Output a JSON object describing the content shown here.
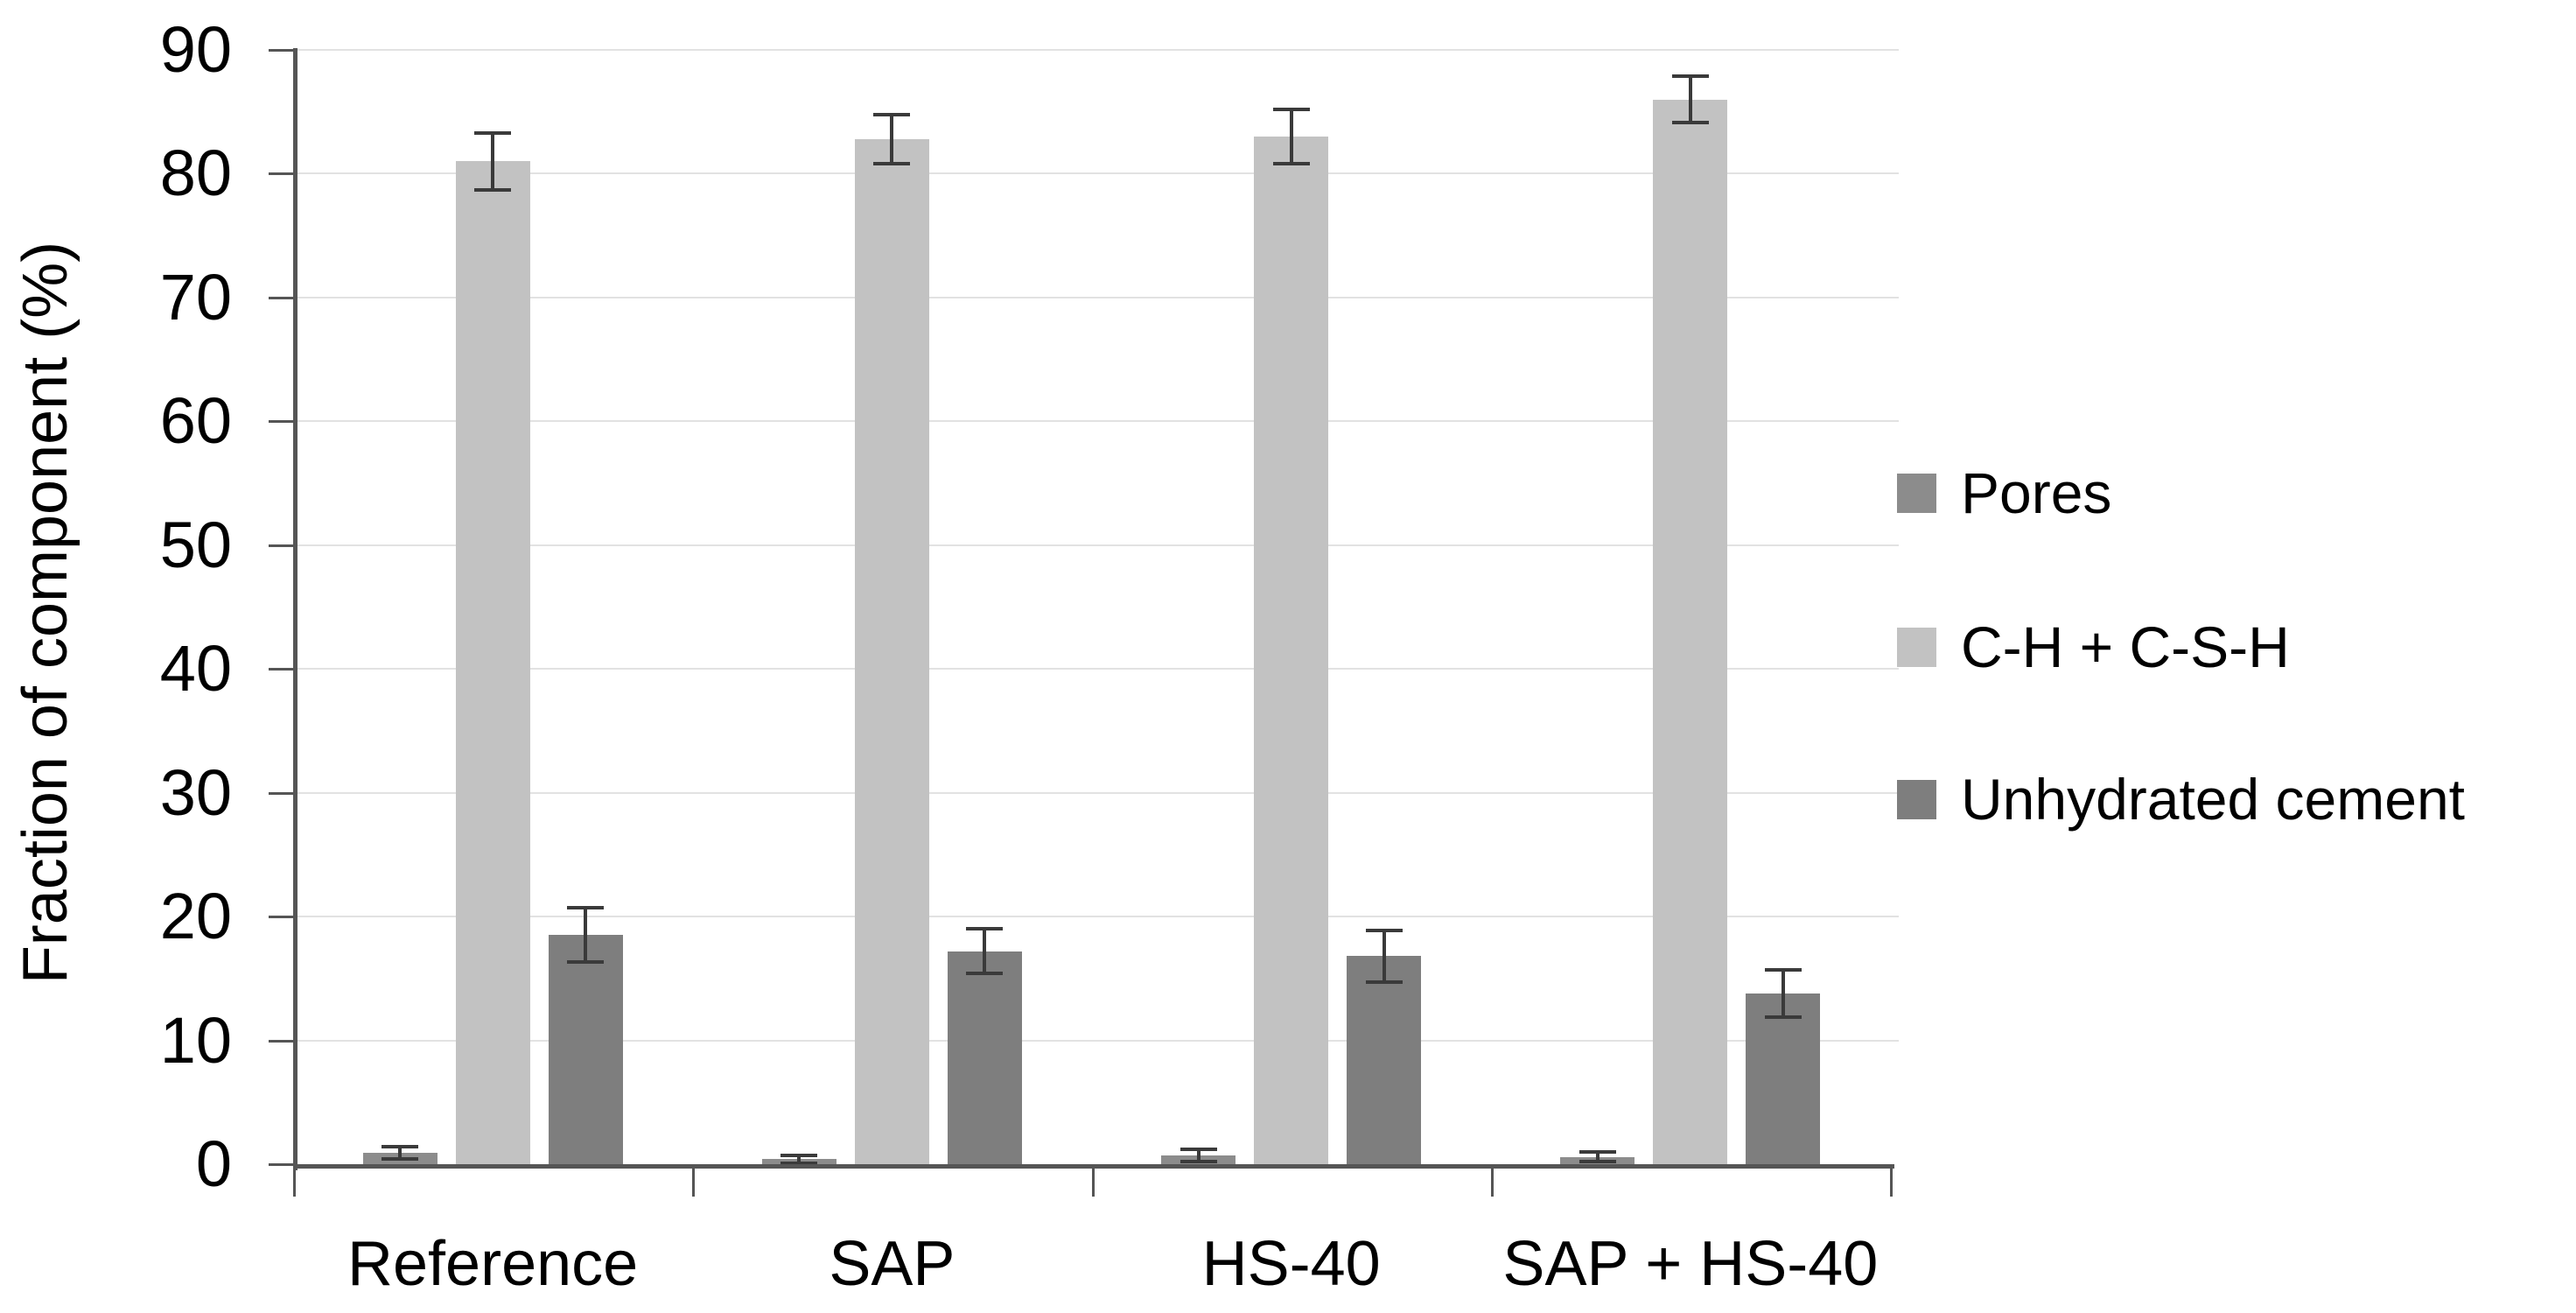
{
  "figure": {
    "background": "#FFFFFF"
  },
  "chart_data": {
    "type": "bar",
    "title": "",
    "xlabel": "",
    "ylabel": "Fraction of component (%)",
    "ylim": [
      0,
      90
    ],
    "ytick_step": 10,
    "ytick_labels": [
      "0",
      "10",
      "20",
      "30",
      "40",
      "50",
      "60",
      "70",
      "80",
      "90"
    ],
    "grid": true,
    "gridline_color": "#E2E2E2",
    "axis_color": "#555555",
    "error_bar_color": "#3A3A3A",
    "text_color": "#000000",
    "legend_position": "right-middle",
    "categories": [
      "Reference",
      "SAP",
      "HS-40",
      "SAP + HS-40"
    ],
    "series": [
      {
        "name": "Pores",
        "color": "#8C8C8C",
        "values": [
          0.9,
          0.4,
          0.7,
          0.6
        ],
        "error_bars": [
          0.5,
          0.3,
          0.5,
          0.4
        ]
      },
      {
        "name": "C-H + C-S-H",
        "color": "#C2C2C2",
        "values": [
          81.0,
          82.8,
          83.0,
          86.0
        ],
        "error_bars": [
          2.3,
          2.0,
          2.2,
          1.9
        ]
      },
      {
        "name": "Unhydrated cement",
        "color": "#7E7E7E",
        "values": [
          18.5,
          17.2,
          16.8,
          13.8
        ],
        "error_bars": [
          2.2,
          1.8,
          2.1,
          1.9
        ]
      }
    ]
  }
}
